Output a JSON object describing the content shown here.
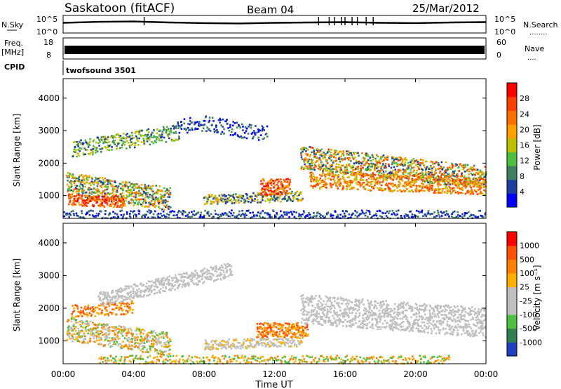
{
  "header": {
    "station": "Saskatoon (fitACF)",
    "beam": "Beam 04",
    "date": "25/Mar/2012"
  },
  "left_labels": {
    "nsky": "N.Sky",
    "freq": "Freq.",
    "freq_unit": "[MHz]",
    "cpid": "CPID"
  },
  "right_labels": {
    "nsearch": "N.Search",
    "nsearch_dots": "........",
    "nave": "Nave",
    "nave_dots": "...."
  },
  "cpid_text": "twofsound 3501",
  "colors": {
    "frame": "#000000",
    "background": "#ffffff",
    "power_scale": [
      "#0000ff",
      "#1f3f9f",
      "#3f7f5f",
      "#4fbf3f",
      "#bfbf00",
      "#ff9f00",
      "#ff6f00",
      "#ff3f00",
      "#ff0000"
    ],
    "velocity_scale": [
      "#1f3fbf",
      "#2f7f4f",
      "#4fbf3f",
      "#bfbfbf",
      "#bfbfbf",
      "#ffaf00",
      "#ff7f00",
      "#ff4f00",
      "#ff0000"
    ]
  },
  "chart_data": [
    {
      "type": "line",
      "panel": "noise",
      "ylabel": "N.Sky",
      "ylabel_right": "N.Search",
      "y_ticks": [
        "10^5",
        "10^0"
      ],
      "y_ticks_right": [
        "10^5",
        "10^0"
      ],
      "x": [
        0,
        2,
        4,
        6,
        8,
        10,
        12,
        14,
        16,
        18,
        20,
        22,
        24
      ],
      "series": [
        {
          "values": [
            3.2,
            3.5,
            3.6,
            3.3,
            3.1,
            3.0,
            3.2,
            3.3,
            3.4,
            3.2,
            3.1,
            3.3,
            3.4
          ]
        }
      ]
    },
    {
      "type": "line",
      "panel": "frequency",
      "ylabel": "Freq. [MHz]",
      "ylabel_right": "Nave",
      "y_ticks": [
        "18",
        "8"
      ],
      "y_ticks_right": [
        "60",
        "0"
      ],
      "x": [
        0,
        24
      ],
      "series": [
        {
          "values": [
            10.5,
            10.5
          ]
        }
      ]
    },
    {
      "type": "heatmap",
      "panel": "power",
      "ylabel": "Slant Range [km]",
      "y_ticks": [
        "4000",
        "3000",
        "2000",
        "1000"
      ],
      "ylim": [
        300,
        4600
      ],
      "colorbar_label": "Power [dB]",
      "colorbar_ticks": [
        "28",
        "24",
        "20",
        "16",
        "12",
        "8",
        "4"
      ],
      "xlim": [
        0,
        24
      ]
    },
    {
      "type": "heatmap",
      "panel": "velocity",
      "ylabel": "Slant Range [km]",
      "y_ticks": [
        "4000",
        "3000",
        "2000",
        "1000"
      ],
      "ylim": [
        300,
        4600
      ],
      "colorbar_label": "Velocity [m s⁻¹]",
      "colorbar_ticks": [
        "1000",
        "500",
        "100",
        "25",
        "-25",
        "-100",
        "-500",
        "-1000"
      ],
      "xlim": [
        0,
        24
      ]
    }
  ],
  "x_axis": {
    "ticks": [
      "00:00",
      "04:00",
      "08:00",
      "12:00",
      "16:00",
      "20:00",
      "00:00"
    ],
    "label": "Time UT"
  }
}
